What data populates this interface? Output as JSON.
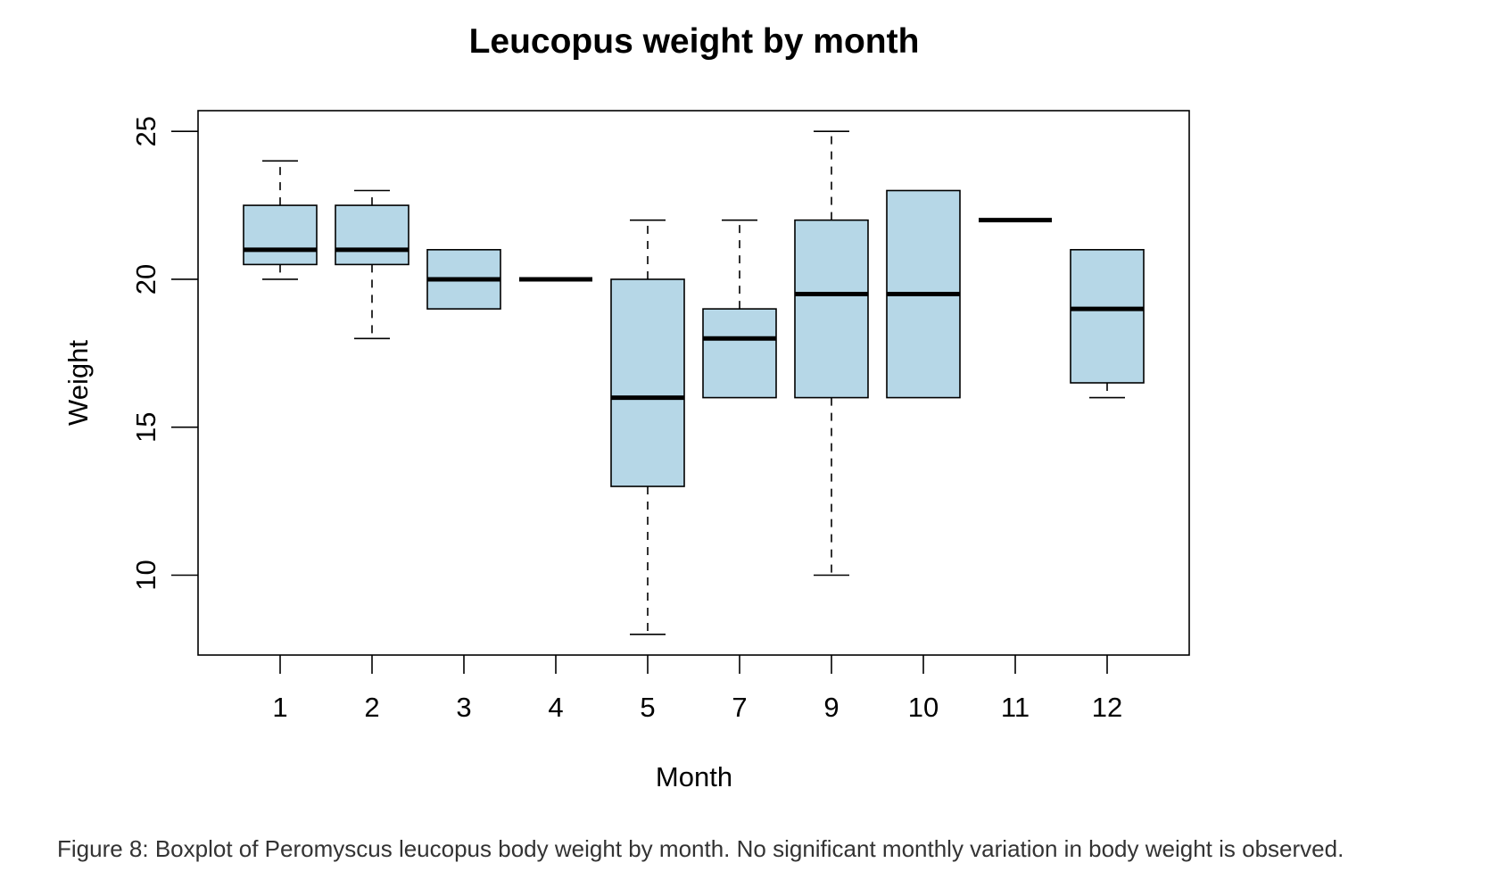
{
  "chart_data": {
    "type": "box",
    "title": "Leucopus weight by month",
    "xlabel": "Month",
    "ylabel": "Weight",
    "ylim": [
      7.3,
      25.7
    ],
    "yticks": [
      10,
      15,
      20,
      25
    ],
    "grid": false,
    "legend": "none",
    "box_color": "#b6d7e7",
    "categories": [
      "1",
      "2",
      "3",
      "4",
      "5",
      "7",
      "9",
      "10",
      "11",
      "12"
    ],
    "boxes": [
      {
        "min": 20,
        "q1": 20.5,
        "median": 21,
        "q3": 22.5,
        "max": 24
      },
      {
        "min": 18,
        "q1": 20.5,
        "median": 21,
        "q3": 22.5,
        "max": 23
      },
      {
        "min": 19,
        "q1": 19,
        "median": 20,
        "q3": 21,
        "max": 21
      },
      {
        "min": 20,
        "q1": 20,
        "median": 20,
        "q3": 20,
        "max": 20
      },
      {
        "min": 8,
        "q1": 13,
        "median": 16,
        "q3": 20,
        "max": 22
      },
      {
        "min": 16,
        "q1": 16,
        "median": 18,
        "q3": 19,
        "max": 22
      },
      {
        "min": 10,
        "q1": 16,
        "median": 19.5,
        "q3": 22,
        "max": 25
      },
      {
        "min": 16,
        "q1": 16,
        "median": 19.5,
        "q3": 23,
        "max": 23
      },
      {
        "min": 22,
        "q1": 22,
        "median": 22,
        "q3": 22,
        "max": 22
      },
      {
        "min": 16,
        "q1": 16.5,
        "median": 19,
        "q3": 21,
        "max": 21
      }
    ]
  },
  "caption": "Figure 8: Boxplot of Peromyscus leucopus body weight by month. No significant monthly variation in body weight is observed."
}
